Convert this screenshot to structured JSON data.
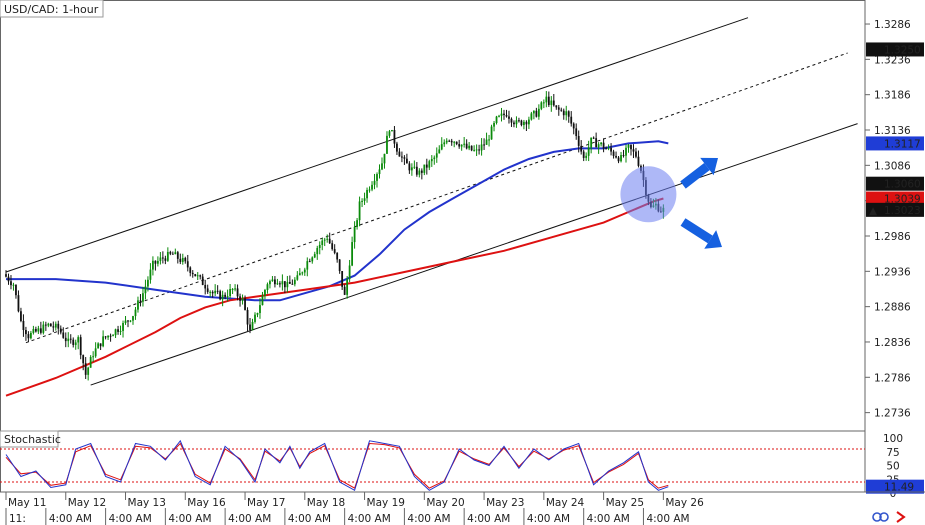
{
  "chart_data": {
    "type": "candlestick",
    "title": "USD/CAD: 1-hour",
    "symbol": "USD/CAD",
    "timeframe": "1-hour",
    "price_axis": {
      "ylim": [
        1.271,
        1.332
      ],
      "ticks": [
        "1.3286",
        "1.3236",
        "1.3186",
        "1.3136",
        "1.3086",
        "1.3036",
        "1.2986",
        "1.2936",
        "1.2886",
        "1.2836",
        "1.2786",
        "1.2736"
      ],
      "flags": [
        {
          "value": 1.325,
          "label": "1.3250",
          "style": "dark"
        },
        {
          "value": 1.3117,
          "label": "1.3117",
          "style": "blue"
        },
        {
          "value": 1.306,
          "label": "1.3060",
          "style": "dark"
        },
        {
          "value": 1.3039,
          "label": "1.3039",
          "style": "red"
        },
        {
          "value": 1.3023,
          "label": "1.3023",
          "style": "dark",
          "marker": "▲"
        }
      ]
    },
    "time_axis": {
      "start": "May 11",
      "end": "May 26",
      "bars": 240,
      "labels": [
        {
          "t": 0,
          "date": "May 11",
          "sub": "11:"
        },
        {
          "t": 16,
          "date": "",
          "sub": "4:00 AM"
        },
        {
          "t": 24,
          "date": "May 12",
          "sub": ""
        },
        {
          "t": 40,
          "date": "",
          "sub": "4:00 AM"
        },
        {
          "t": 48,
          "date": "May 13",
          "sub": ""
        },
        {
          "t": 64,
          "date": "",
          "sub": "4:00 AM"
        },
        {
          "t": 72,
          "date": "May 16",
          "sub": ""
        },
        {
          "t": 88,
          "date": "",
          "sub": "4:00 AM"
        },
        {
          "t": 96,
          "date": "May 17",
          "sub": ""
        },
        {
          "t": 112,
          "date": "",
          "sub": "4:00 AM"
        },
        {
          "t": 120,
          "date": "May 18",
          "sub": ""
        },
        {
          "t": 136,
          "date": "",
          "sub": "4:00 AM"
        },
        {
          "t": 144,
          "date": "May 19",
          "sub": ""
        },
        {
          "t": 160,
          "date": "",
          "sub": "4:00 AM"
        },
        {
          "t": 168,
          "date": "May 20",
          "sub": ""
        },
        {
          "t": 184,
          "date": "",
          "sub": "4:00 AM"
        },
        {
          "t": 192,
          "date": "May 23",
          "sub": ""
        },
        {
          "t": 208,
          "date": "",
          "sub": "4:00 AM"
        },
        {
          "t": 216,
          "date": "May 24",
          "sub": ""
        },
        {
          "t": 232,
          "date": "",
          "sub": "4:00 AM"
        },
        {
          "t": 240,
          "date": "May 25",
          "sub": ""
        },
        {
          "t": 256,
          "date": "",
          "sub": "4:00 AM"
        },
        {
          "t": 264,
          "date": "May 26",
          "sub": ""
        }
      ]
    },
    "price_path": [
      [
        0,
        1.2932
      ],
      [
        4,
        1.2918
      ],
      [
        7,
        1.2865
      ],
      [
        10,
        1.2845
      ],
      [
        14,
        1.2852
      ],
      [
        18,
        1.286
      ],
      [
        22,
        1.2855
      ],
      [
        26,
        1.2835
      ],
      [
        30,
        1.284
      ],
      [
        33,
        1.279
      ],
      [
        36,
        1.282
      ],
      [
        40,
        1.284
      ],
      [
        44,
        1.285
      ],
      [
        48,
        1.286
      ],
      [
        52,
        1.2875
      ],
      [
        56,
        1.2905
      ],
      [
        60,
        1.2945
      ],
      [
        64,
        1.2955
      ],
      [
        68,
        1.296
      ],
      [
        72,
        1.295
      ],
      [
        76,
        1.2935
      ],
      [
        80,
        1.292
      ],
      [
        84,
        1.2905
      ],
      [
        88,
        1.29
      ],
      [
        92,
        1.291
      ],
      [
        96,
        1.2895
      ],
      [
        99,
        1.285
      ],
      [
        102,
        1.288
      ],
      [
        106,
        1.292
      ],
      [
        110,
        1.2925
      ],
      [
        114,
        1.2915
      ],
      [
        118,
        1.2925
      ],
      [
        122,
        1.295
      ],
      [
        126,
        1.297
      ],
      [
        130,
        1.2985
      ],
      [
        134,
        1.295
      ],
      [
        137,
        1.29
      ],
      [
        140,
        1.2975
      ],
      [
        143,
        1.303
      ],
      [
        146,
        1.305
      ],
      [
        149,
        1.307
      ],
      [
        152,
        1.309
      ],
      [
        155,
        1.314
      ],
      [
        158,
        1.311
      ],
      [
        161,
        1.309
      ],
      [
        164,
        1.308
      ],
      [
        167,
        1.3075
      ],
      [
        170,
        1.3085
      ],
      [
        174,
        1.31
      ],
      [
        178,
        1.3125
      ],
      [
        182,
        1.312
      ],
      [
        186,
        1.311
      ],
      [
        190,
        1.3105
      ],
      [
        194,
        1.312
      ],
      [
        198,
        1.315
      ],
      [
        202,
        1.316
      ],
      [
        206,
        1.3145
      ],
      [
        210,
        1.315
      ],
      [
        214,
        1.316
      ],
      [
        218,
        1.318
      ],
      [
        222,
        1.3165
      ],
      [
        226,
        1.316
      ],
      [
        230,
        1.313
      ],
      [
        233,
        1.3095
      ],
      [
        236,
        1.312
      ],
      [
        240,
        1.3115
      ],
      [
        244,
        1.3105
      ],
      [
        248,
        1.3095
      ],
      [
        251,
        1.311
      ],
      [
        254,
        1.31
      ],
      [
        256,
        1.308
      ],
      [
        258,
        1.305
      ],
      [
        260,
        1.3025
      ],
      [
        262,
        1.303
      ],
      [
        264,
        1.3023
      ]
    ],
    "series": [
      {
        "type": "ma",
        "color": "#2233cc",
        "points": [
          [
            0,
            1.2925
          ],
          [
            20,
            1.2925
          ],
          [
            40,
            1.292
          ],
          [
            60,
            1.291
          ],
          [
            80,
            1.29
          ],
          [
            100,
            1.2895
          ],
          [
            110,
            1.2895
          ],
          [
            120,
            1.2905
          ],
          [
            130,
            1.2915
          ],
          [
            140,
            1.293
          ],
          [
            150,
            1.296
          ],
          [
            160,
            1.2995
          ],
          [
            170,
            1.302
          ],
          [
            180,
            1.304
          ],
          [
            190,
            1.306
          ],
          [
            200,
            1.308
          ],
          [
            210,
            1.3095
          ],
          [
            220,
            1.3105
          ],
          [
            230,
            1.311
          ],
          [
            240,
            1.311
          ],
          [
            250,
            1.3117
          ],
          [
            262,
            1.312
          ],
          [
            266,
            1.3117
          ]
        ]
      },
      {
        "type": "ma",
        "color": "#dd1111",
        "points": [
          [
            0,
            1.276
          ],
          [
            20,
            1.2785
          ],
          [
            40,
            1.2815
          ],
          [
            60,
            1.285
          ],
          [
            70,
            1.287
          ],
          [
            80,
            1.2885
          ],
          [
            90,
            1.2895
          ],
          [
            100,
            1.29
          ],
          [
            120,
            1.291
          ],
          [
            140,
            1.292
          ],
          [
            160,
            1.2935
          ],
          [
            180,
            1.295
          ],
          [
            200,
            1.2965
          ],
          [
            220,
            1.2985
          ],
          [
            240,
            1.3005
          ],
          [
            250,
            1.302
          ],
          [
            260,
            1.3035
          ],
          [
            264,
            1.3039
          ]
        ]
      }
    ],
    "channel": {
      "upper": [
        [
          0,
          1.2935
        ],
        [
          298,
          1.3295
        ]
      ],
      "mid": [
        [
          8,
          1.2835
        ],
        [
          338,
          1.3245
        ]
      ],
      "lower": [
        [
          34,
          1.2775
        ],
        [
          342,
          1.3145
        ]
      ]
    },
    "annotation": {
      "circle_center": [
        258,
        1.3045
      ],
      "arrows": [
        "up-right",
        "down-right"
      ]
    },
    "stochastic": {
      "label": "Stochastic",
      "ticks": [
        "100",
        "75",
        "50",
        "25",
        "0"
      ],
      "levels": [
        80,
        20
      ],
      "flag": {
        "value": 11.49,
        "label": "11.49"
      },
      "k": [
        [
          0,
          70
        ],
        [
          6,
          30
        ],
        [
          12,
          40
        ],
        [
          18,
          10
        ],
        [
          24,
          15
        ],
        [
          28,
          80
        ],
        [
          34,
          90
        ],
        [
          40,
          30
        ],
        [
          46,
          20
        ],
        [
          52,
          90
        ],
        [
          58,
          85
        ],
        [
          64,
          60
        ],
        [
          70,
          95
        ],
        [
          76,
          30
        ],
        [
          82,
          15
        ],
        [
          88,
          85
        ],
        [
          94,
          60
        ],
        [
          100,
          20
        ],
        [
          104,
          80
        ],
        [
          110,
          55
        ],
        [
          114,
          85
        ],
        [
          118,
          45
        ],
        [
          122,
          75
        ],
        [
          128,
          90
        ],
        [
          134,
          20
        ],
        [
          140,
          5
        ],
        [
          146,
          95
        ],
        [
          152,
          90
        ],
        [
          158,
          85
        ],
        [
          164,
          30
        ],
        [
          170,
          5
        ],
        [
          176,
          20
        ],
        [
          182,
          80
        ],
        [
          188,
          60
        ],
        [
          194,
          50
        ],
        [
          200,
          85
        ],
        [
          206,
          45
        ],
        [
          212,
          80
        ],
        [
          218,
          60
        ],
        [
          224,
          80
        ],
        [
          230,
          90
        ],
        [
          236,
          15
        ],
        [
          242,
          40
        ],
        [
          248,
          55
        ],
        [
          254,
          75
        ],
        [
          258,
          20
        ],
        [
          262,
          5
        ],
        [
          266,
          11.49
        ]
      ],
      "d": [
        [
          0,
          65
        ],
        [
          6,
          35
        ],
        [
          12,
          38
        ],
        [
          18,
          14
        ],
        [
          24,
          18
        ],
        [
          28,
          75
        ],
        [
          34,
          86
        ],
        [
          40,
          34
        ],
        [
          46,
          24
        ],
        [
          52,
          85
        ],
        [
          58,
          82
        ],
        [
          64,
          62
        ],
        [
          70,
          90
        ],
        [
          76,
          34
        ],
        [
          82,
          18
        ],
        [
          88,
          80
        ],
        [
          94,
          62
        ],
        [
          100,
          24
        ],
        [
          104,
          76
        ],
        [
          110,
          58
        ],
        [
          114,
          82
        ],
        [
          118,
          48
        ],
        [
          122,
          72
        ],
        [
          128,
          86
        ],
        [
          134,
          24
        ],
        [
          140,
          9
        ],
        [
          146,
          90
        ],
        [
          152,
          88
        ],
        [
          158,
          82
        ],
        [
          164,
          34
        ],
        [
          170,
          9
        ],
        [
          176,
          22
        ],
        [
          182,
          76
        ],
        [
          188,
          62
        ],
        [
          194,
          52
        ],
        [
          200,
          82
        ],
        [
          206,
          48
        ],
        [
          212,
          76
        ],
        [
          218,
          62
        ],
        [
          224,
          78
        ],
        [
          230,
          86
        ],
        [
          236,
          19
        ],
        [
          242,
          38
        ],
        [
          248,
          52
        ],
        [
          254,
          72
        ],
        [
          258,
          24
        ],
        [
          262,
          9
        ],
        [
          266,
          14
        ]
      ]
    }
  }
}
